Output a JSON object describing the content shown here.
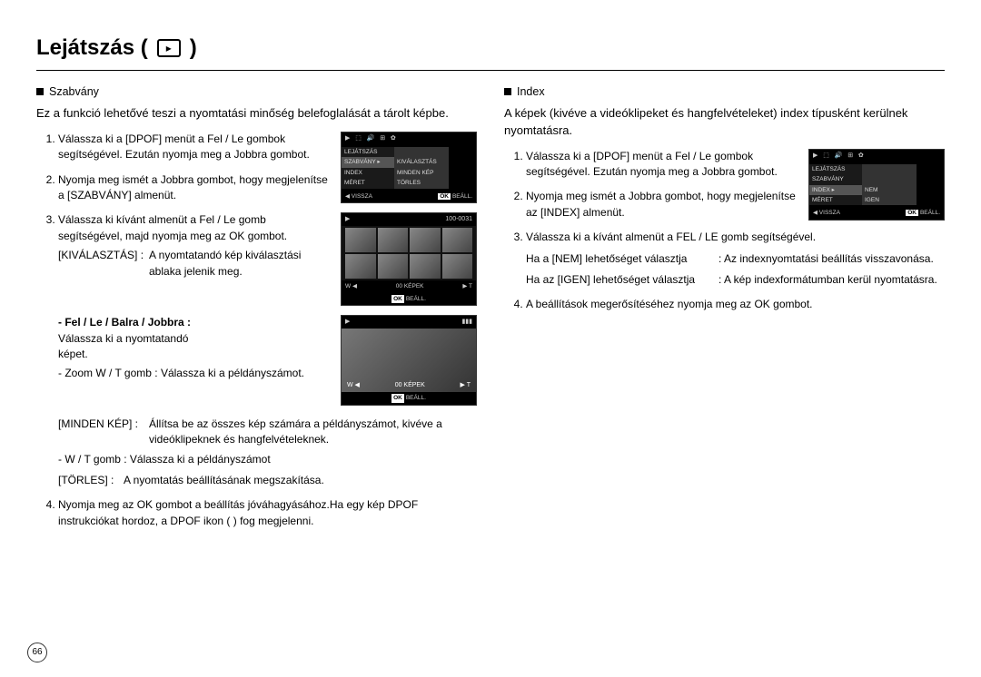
{
  "page": {
    "title": "Lejátszás (",
    "title_close": ")",
    "page_number": "66"
  },
  "left": {
    "section": "Szabvány",
    "intro": "Ez a funkció lehetővé teszi a nyomtatási minőség belefoglalását a tárolt képbe.",
    "step1": "Válassza ki a [DPOF] menüt a Fel / Le gombok segítségével. Ezután nyomja meg a Jobbra gombot.",
    "step2": "Nyomja meg ismét a Jobbra gombot, hogy megjelenítse a [SZABVÁNY] almenüt.",
    "step3": "Válassza ki kívánt almenüt a Fel / Le gomb segítségével, majd nyomja meg az OK gombot.",
    "kival_l": "[KIVÁLASZTÁS] :",
    "kival_r": "A nyomtatandó kép kiválasztási ablaka jelenik meg.",
    "fel_l": "- Fel / Le / Balra / Jobbra :",
    "fel_r": "Válassza ki a nyomtatandó képet.",
    "zoom_l": "- Zoom W / T gomb :",
    "zoom_r": "Válassza ki a példányszámot.",
    "minden_l": "[MINDEN KÉP] :",
    "minden_r": "Állítsa be az összes kép számára a példányszámot, kivéve a videóklipeknek és hangfelvételeknek.",
    "wt": "- W / T gomb : Válassza ki a példányszámot",
    "torles_l": "[TÖRLES] :",
    "torles_r": "A nyomtatás beállításának megszakítása.",
    "step4": "Nyomja meg az OK gombot a beállítás jóváhagyásához.Ha egy kép DPOF instrukciókat hordoz, a DPOF ikon (       ) fog megjelenni."
  },
  "right": {
    "section": "Index",
    "intro": "A képek (kivéve a videóklipeket és hangfelvételeket) index típusként kerülnek nyomtatásra.",
    "step1": "Válassza ki a [DPOF] menüt a Fel / Le gombok segítségével. Ezután nyomja meg a Jobbra gombot.",
    "step2": "Nyomja meg ismét a Jobbra gombot, hogy megjelenítse az [INDEX] almenüt.",
    "step3": "Válassza ki a kívánt almenüt a FEL / LE gomb segítségével.",
    "nem_l": "Ha a [NEM] lehetőséget választja",
    "nem_r": ": Az indexnyomtatási beállítás visszavonása.",
    "igen_l": "Ha az [IGEN] lehetőséget választja",
    "igen_r": ": A kép indexformátumban kerül nyomtatásra.",
    "step4": "A beállítások megerősítéséhez nyomja meg az OK gombot."
  },
  "screens": {
    "s1": {
      "menu": [
        {
          "l": "LEJÁTSZÁS",
          "r": ""
        },
        {
          "l": "SZABVÁNY",
          "r": "KIVÁLASZTÁS",
          "sel": true
        },
        {
          "l": "INDEX",
          "r": "MINDEN KÉP"
        },
        {
          "l": "MÉRET",
          "r": "TÖRLES"
        }
      ],
      "foot_l": "◀  VISSZA",
      "foot_r_btn": "OK",
      "foot_r": "BEÁLL."
    },
    "s2": {
      "top_l": "▶",
      "top_r": "100-0031",
      "wt_l": "W ◀",
      "wt_mid": "00 KÉPEK",
      "wt_r": "▶ T",
      "foot_btn": "OK",
      "foot": "BEÁLL."
    },
    "s3": {
      "wt_l": "W ◀",
      "wt_mid": "00 KÉPEK",
      "wt_r": "▶ T",
      "foot_btn": "OK",
      "foot": "BEÁLL."
    },
    "s4": {
      "menu": [
        {
          "l": "LEJÁTSZÁS",
          "r": ""
        },
        {
          "l": "SZABVÁNY",
          "r": ""
        },
        {
          "l": "INDEX",
          "r": "NEM",
          "sel": true
        },
        {
          "l": "MÉRET",
          "r": "IGEN"
        }
      ],
      "foot_l": "◀  VISSZA",
      "foot_r_btn": "OK",
      "foot_r": "BEÁLL."
    }
  }
}
